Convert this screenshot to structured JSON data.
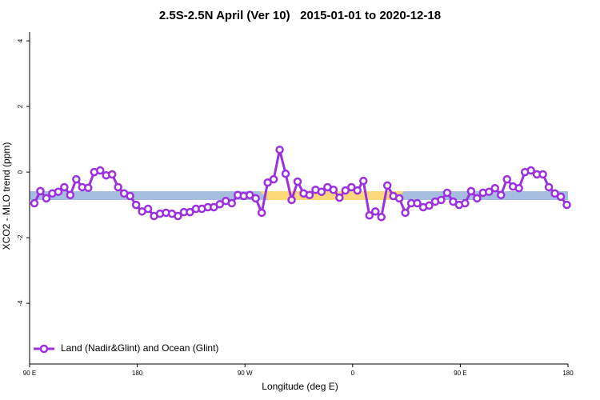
{
  "chart_data": {
    "type": "line",
    "title": "2.5S-2.5N April (Ver 10)   2015-01-01 to 2020-12-18",
    "xlabel": "Longitude (deg E)",
    "ylabel": "XCO2 - MLO trend (ppm)",
    "xlim": [
      90,
      540
    ],
    "ylim": [
      -5.85,
      4.27
    ],
    "xticks": [
      {
        "value": 90,
        "label": "90 E"
      },
      180,
      {
        "value": 270,
        "label": "90 W"
      },
      {
        "value": 360,
        "label": "0"
      },
      {
        "value": 450,
        "label": "90 E"
      },
      {
        "value": 540,
        "label": "180"
      }
    ],
    "yticks": [
      -4,
      -2,
      0,
      2,
      4
    ],
    "legend": "bottom-left",
    "x": [
      94,
      99,
      104,
      109,
      114,
      119,
      124,
      129,
      134,
      139,
      144,
      149,
      154,
      159,
      164,
      169,
      174,
      179,
      184,
      189,
      194,
      199,
      204,
      209,
      214,
      219,
      224,
      229,
      234,
      239,
      244,
      249,
      254,
      259,
      264,
      269,
      274,
      279,
      284,
      289,
      294,
      299,
      304,
      309,
      314,
      319,
      324,
      329,
      334,
      339,
      344,
      349,
      354,
      359,
      364,
      369,
      374,
      379,
      384,
      389,
      394,
      399,
      404,
      409,
      414,
      419,
      424,
      429,
      434,
      439,
      444,
      449,
      454,
      459,
      464,
      469,
      474,
      479,
      484,
      489,
      494,
      499,
      504,
      509,
      514,
      519,
      524,
      529,
      534,
      539
    ],
    "series": [
      {
        "name": "Land (Nadir&Glint) and Ocean (Glint)",
        "color": "#9b30e0",
        "values": [
          -0.95,
          -0.58,
          -0.8,
          -0.65,
          -0.6,
          -0.46,
          -0.7,
          -0.22,
          -0.46,
          -0.48,
          0,
          0.05,
          -0.1,
          -0.07,
          -0.46,
          -0.65,
          -0.73,
          -1.0,
          -1.2,
          -1.12,
          -1.34,
          -1.27,
          -1.24,
          -1.27,
          -1.34,
          -1.22,
          -1.22,
          -1.12,
          -1.12,
          -1.07,
          -1.07,
          -0.98,
          -0.88,
          -0.95,
          -0.7,
          -0.73,
          -0.7,
          -0.8,
          -1.24,
          -0.32,
          -0.22,
          0.68,
          -0.05,
          -0.85,
          -0.29,
          -0.65,
          -0.7,
          -0.54,
          -0.6,
          -0.46,
          -0.54,
          -0.78,
          -0.56,
          -0.46,
          -0.56,
          -0.27,
          -1.32,
          -1.2,
          -1.37,
          -0.41,
          -0.73,
          -0.8,
          -1.24,
          -0.95,
          -0.95,
          -1.07,
          -1.02,
          -0.9,
          -0.85,
          -0.63,
          -0.9,
          -1.0,
          -0.95,
          -0.58,
          -0.8,
          -0.63,
          -0.6,
          -0.49,
          -0.7,
          -0.22,
          -0.44,
          -0.49,
          0,
          0.05,
          -0.07,
          -0.07,
          -0.46,
          -0.65,
          -0.75,
          -1.0
        ]
      }
    ]
  }
}
